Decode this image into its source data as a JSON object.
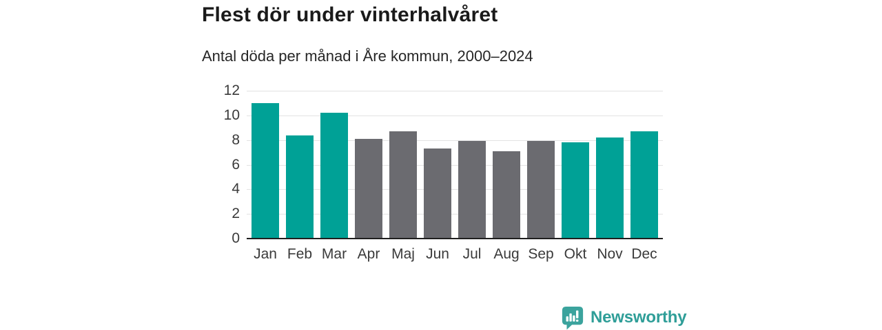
{
  "header": {
    "title": "Flest dör under vinterhalvåret",
    "subtitle": "Antal döda per månad i Åre kommun, 2000–2024"
  },
  "chart_data": {
    "type": "bar",
    "title": "Flest dör under vinterhalvåret",
    "subtitle": "Antal döda per månad i Åre kommun, 2000–2024",
    "categories": [
      "Jan",
      "Feb",
      "Mar",
      "Apr",
      "Maj",
      "Jun",
      "Jul",
      "Aug",
      "Sep",
      "Okt",
      "Nov",
      "Dec"
    ],
    "values": [
      11.0,
      8.4,
      10.2,
      8.1,
      8.7,
      7.3,
      7.9,
      7.1,
      7.9,
      7.8,
      8.2,
      8.7
    ],
    "bar_color_roles": [
      "highlight",
      "highlight",
      "highlight",
      "muted",
      "muted",
      "muted",
      "muted",
      "muted",
      "muted",
      "highlight",
      "highlight",
      "highlight"
    ],
    "xlabel": "",
    "ylabel": "",
    "ylim": [
      0,
      12
    ],
    "yticks": [
      0,
      2,
      4,
      6,
      8,
      10,
      12
    ],
    "grid": "horizontal",
    "legend": "none"
  },
  "colors": {
    "highlight": "#00a196",
    "muted": "#6b6b70",
    "gridline": "#e2e2e2",
    "axis_line": "#1f1f1f",
    "tick_text": "#3a3a3a",
    "title_text": "#1a1a1a",
    "brand_teal": "#2f9e98",
    "logo_bubble": "#3ba39d",
    "logo_glyph": "#ffffff"
  },
  "footer": {
    "brand_name": "Newsworthy"
  }
}
